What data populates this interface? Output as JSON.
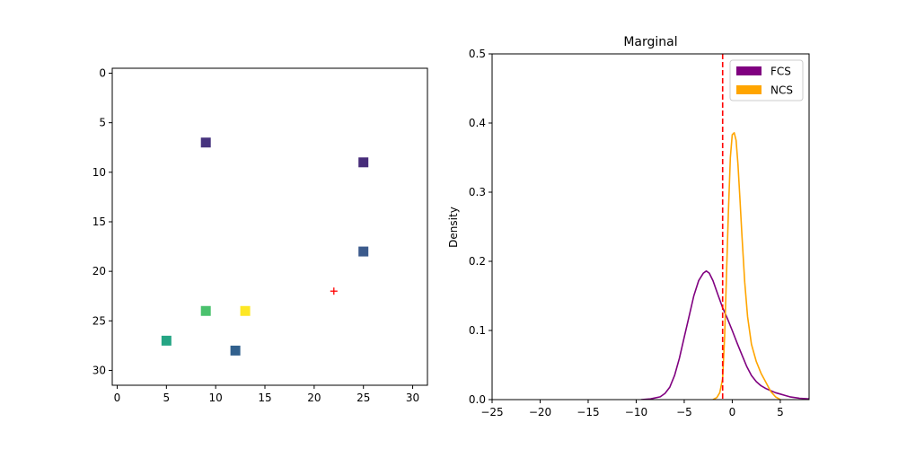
{
  "chart_data": [
    {
      "type": "scatter",
      "title": "",
      "xlabel": "",
      "ylabel": "",
      "xlim": [
        -0.5,
        31.5
      ],
      "ylim": [
        31.5,
        -0.5
      ],
      "y_inverted": true,
      "xticks": [
        0,
        5,
        10,
        15,
        20,
        25,
        30
      ],
      "yticks": [
        0,
        5,
        10,
        15,
        20,
        25,
        30
      ],
      "marker": "square",
      "colormap": "viridis",
      "points": [
        {
          "x": 9,
          "y": 7,
          "color": "#46337e"
        },
        {
          "x": 25,
          "y": 9,
          "color": "#472c7a"
        },
        {
          "x": 25,
          "y": 18,
          "color": "#3b5a8c"
        },
        {
          "x": 9,
          "y": 24,
          "color": "#4ac16d"
        },
        {
          "x": 13,
          "y": 24,
          "color": "#fde725"
        },
        {
          "x": 5,
          "y": 27,
          "color": "#25a584"
        },
        {
          "x": 12,
          "y": 28,
          "color": "#31608d"
        }
      ],
      "target": {
        "x": 22,
        "y": 22,
        "marker": "plus",
        "color": "#ff0000"
      },
      "grid": false
    },
    {
      "type": "line",
      "title": "Marginal",
      "xlabel": "",
      "ylabel": "Density",
      "xlim": [
        -25,
        8
      ],
      "ylim": [
        0,
        0.5
      ],
      "xticks": [
        -25,
        -20,
        -15,
        -10,
        -5,
        0,
        5
      ],
      "xtick_labels": [
        "−25",
        "−20",
        "−15",
        "−10",
        "−5",
        "0",
        "5"
      ],
      "yticks": [
        0.0,
        0.1,
        0.2,
        0.3,
        0.4,
        0.5
      ],
      "ytick_labels": [
        "0.0",
        "0.1",
        "0.2",
        "0.3",
        "0.4",
        "0.5"
      ],
      "series": [
        {
          "name": "FCS",
          "color": "#800080",
          "x": [
            -9.5,
            -8.5,
            -7.5,
            -7.0,
            -6.5,
            -6.0,
            -5.5,
            -5.0,
            -4.5,
            -4.0,
            -3.5,
            -3.0,
            -2.7,
            -2.4,
            -2.0,
            -1.5,
            -1.0,
            -0.5,
            0.0,
            0.5,
            1.0,
            1.5,
            2.0,
            2.5,
            3.0,
            3.5,
            4.0,
            4.5,
            5.0,
            5.5,
            6.0,
            7.0,
            8.0
          ],
          "y": [
            0.0,
            0.001,
            0.004,
            0.009,
            0.018,
            0.035,
            0.06,
            0.09,
            0.12,
            0.15,
            0.172,
            0.183,
            0.186,
            0.183,
            0.172,
            0.152,
            0.133,
            0.117,
            0.1,
            0.082,
            0.065,
            0.048,
            0.035,
            0.026,
            0.02,
            0.016,
            0.013,
            0.01,
            0.008,
            0.006,
            0.004,
            0.002,
            0.001
          ]
        },
        {
          "name": "NCS",
          "color": "#ffa500",
          "x": [
            -2.0,
            -1.6,
            -1.3,
            -1.0,
            -0.8,
            -0.6,
            -0.4,
            -0.2,
            0.0,
            0.2,
            0.4,
            0.6,
            0.8,
            1.0,
            1.3,
            1.6,
            2.0,
            2.5,
            3.0,
            3.5,
            4.0,
            4.5,
            5.0
          ],
          "y": [
            0.0,
            0.003,
            0.01,
            0.03,
            0.09,
            0.18,
            0.27,
            0.35,
            0.383,
            0.386,
            0.375,
            0.34,
            0.29,
            0.24,
            0.17,
            0.12,
            0.08,
            0.055,
            0.038,
            0.025,
            0.012,
            0.004,
            0.0
          ]
        }
      ],
      "vline": {
        "x": -1,
        "color": "#ff0000",
        "style": "dashed"
      },
      "legend": {
        "position": "top-right",
        "entries": [
          "FCS",
          "NCS"
        ]
      },
      "grid": false
    }
  ]
}
